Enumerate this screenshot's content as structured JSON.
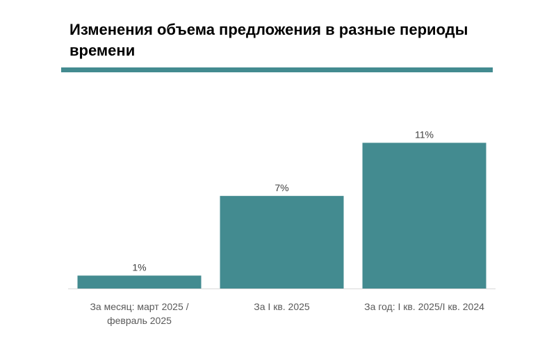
{
  "title": "Изменения объема предложения в разные периоды времени",
  "colors": {
    "accent": "#438b90",
    "bar": "#438b90",
    "axis_line": "#d9d9d9",
    "label_text": "#404040",
    "category_text": "#595959"
  },
  "chart_data": {
    "type": "bar",
    "categories": [
      [
        "За месяц: март 2025 /",
        "февраль 2025"
      ],
      [
        "За I кв. 2025"
      ],
      [
        "За год: I кв. 2025/I кв. 2024"
      ]
    ],
    "values": [
      1,
      7,
      11
    ],
    "data_labels": [
      "1%",
      "7%",
      "11%"
    ],
    "value_unit": "%",
    "title": "Изменения объема предложения в разные периоды времени",
    "xlabel": "",
    "ylabel": "",
    "ylim": [
      0,
      12
    ],
    "grid": false,
    "legend": "none"
  }
}
